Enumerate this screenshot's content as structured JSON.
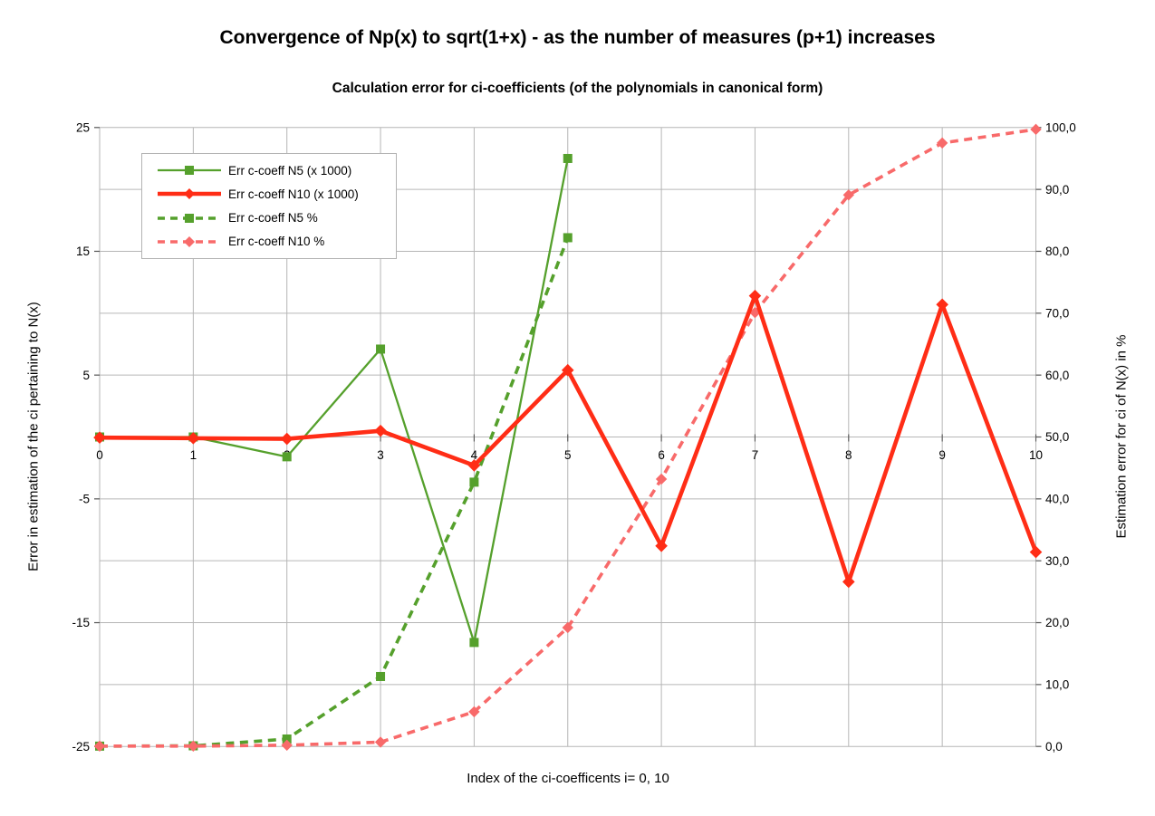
{
  "chart": {
    "title": "Convergence of Np(x) to sqrt(1+x) - as the number of measures (p+1) increases",
    "subtitle": "Calculation error for ci-coefficients (of the polynomials in canonical form)"
  },
  "axes": {
    "x": {
      "title": "Index of the ci-coefficents i= 0, 10",
      "tick_labels": [
        "0",
        "1",
        "2",
        "3",
        "4",
        "5",
        "6",
        "7",
        "8",
        "9",
        "10"
      ],
      "tick_values": [
        0,
        1,
        2,
        3,
        4,
        5,
        6,
        7,
        8,
        9,
        10
      ]
    },
    "left": {
      "title": "Error in estimation of the ci pertaining to N(x)",
      "tick_labels": [
        "25",
        "15",
        "5",
        "-5",
        "-15",
        "-25"
      ],
      "tick_values": [
        25,
        15,
        5,
        -5,
        -15,
        -25
      ],
      "range": [
        -25,
        25
      ],
      "gridline_step": 5
    },
    "right": {
      "title": "Estimation error for ci of N(x) in %",
      "tick_labels": [
        "100,0",
        "90,0",
        "80,0",
        "70,0",
        "60,0",
        "50,0",
        "40,0",
        "30,0",
        "20,0",
        "10,0",
        "0,0"
      ],
      "tick_values": [
        100,
        90,
        80,
        70,
        60,
        50,
        40,
        30,
        20,
        10,
        0
      ],
      "range": [
        0,
        100
      ]
    }
  },
  "style": {
    "background": "#ffffff",
    "grid_color": "#b6b6b6",
    "tick_color": "#555555",
    "text_color": "#000000",
    "legend_border": "#b3b3b3",
    "series_green": "#55a02c",
    "series_red": "#ff2d16",
    "series_pink": "#f86a6a"
  },
  "chart_data": {
    "type": "line",
    "title": "Convergence of Np(x) to sqrt(1+x) - as the number of measures (p+1) increases",
    "subtitle": "Calculation error for ci-coefficients (of the polynomials in canonical form)",
    "xlabel": "Index of the ci-coefficents i= 0, 10",
    "ylabel_left": "Error in estimation of the ci pertaining to N(x)",
    "ylabel_right": "Estimation error for ci of N(x) in %",
    "x": [
      0,
      1,
      2,
      3,
      4,
      5,
      6,
      7,
      8,
      9,
      10
    ],
    "ylim_left": [
      -25,
      25
    ],
    "ylim_right": [
      0,
      100
    ],
    "grid": true,
    "legend_position": "top-left-inside",
    "series": [
      {
        "name": "Err c-coeff N5 (x 1000)",
        "axis": "left",
        "line": "solid",
        "marker": "square",
        "color": "#55a02c",
        "width": 2.3,
        "x": [
          0,
          1,
          2,
          3,
          4,
          5
        ],
        "values": [
          0,
          0,
          -1.6,
          7.1,
          -16.6,
          22.5
        ]
      },
      {
        "name": "Err c-coeff N10 (x 1000)",
        "axis": "left",
        "line": "solid",
        "marker": "diamond",
        "color": "#ff2d16",
        "width": 4.6,
        "x": [
          0,
          1,
          2,
          3,
          4,
          5,
          6,
          7,
          8,
          9,
          10
        ],
        "values": [
          -0.05,
          -0.1,
          -0.15,
          0.5,
          -2.3,
          5.4,
          -8.8,
          11.4,
          -11.7,
          10.7,
          -9.3
        ]
      },
      {
        "name": "Err c-coeff N5 %",
        "axis": "right",
        "line": "dashed",
        "marker": "square",
        "color": "#55a02c",
        "width": 3.6,
        "x": [
          0,
          1,
          2,
          3,
          4,
          5
        ],
        "values": [
          0.05,
          0.1,
          1.2,
          11.3,
          42.7,
          82.2
        ]
      },
      {
        "name": "Err c-coeff N10 %",
        "axis": "right",
        "line": "dashed",
        "marker": "diamond",
        "color": "#f86a6a",
        "width": 3.6,
        "x": [
          0,
          1,
          2,
          3,
          4,
          5,
          6,
          7,
          8,
          9,
          10
        ],
        "values": [
          0.05,
          0.05,
          0.2,
          0.7,
          5.6,
          19.2,
          43.2,
          70.1,
          89.1,
          97.5,
          99.7
        ]
      }
    ]
  }
}
